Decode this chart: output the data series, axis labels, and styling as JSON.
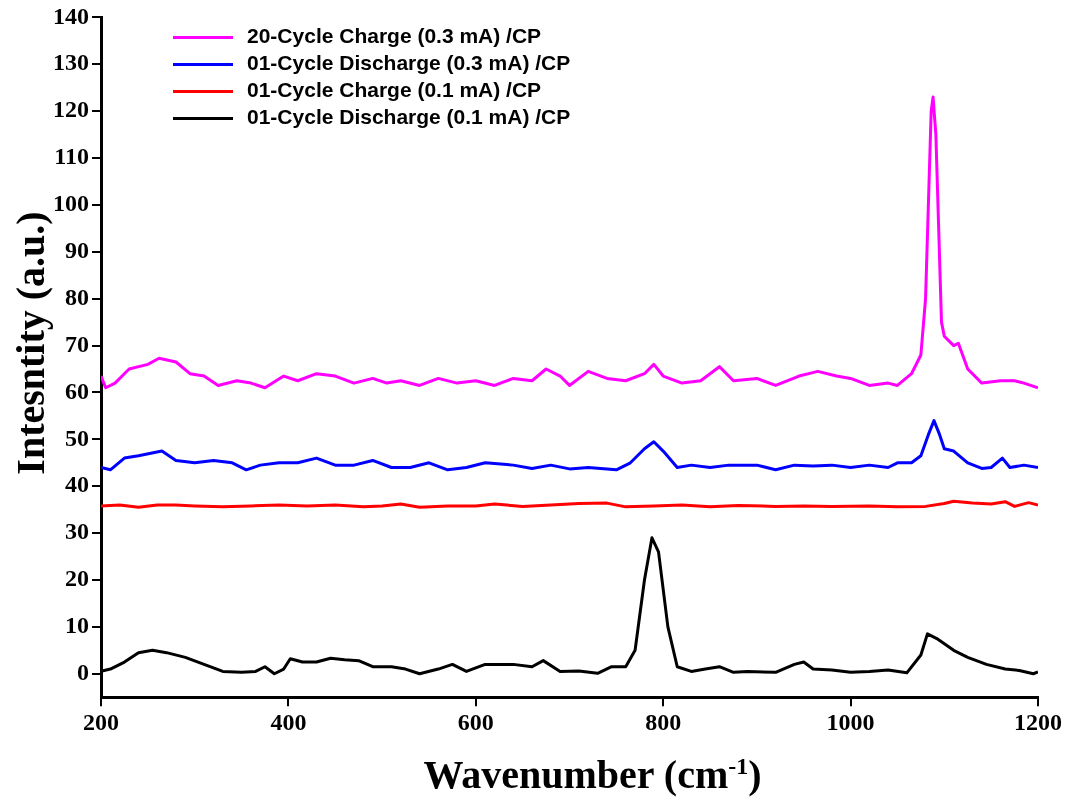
{
  "chart_data": {
    "type": "line",
    "xlabel": "Wavenumber (cm$^{-1}$)",
    "ylabel": "Intesntity (a.u.)",
    "xlim": [
      200,
      1200
    ],
    "xticks": [
      200,
      400,
      600,
      800,
      1000,
      1200
    ],
    "ylim": [
      -5,
      140
    ],
    "yticks": [
      0,
      10,
      20,
      30,
      40,
      50,
      60,
      70,
      80,
      90,
      100,
      110,
      120,
      130,
      140
    ],
    "legend": "top left",
    "series": [
      {
        "name": "20-Cycle Charge (0.3 mA) /CP",
        "color": "#ff00ff",
        "x": [
          200,
          205,
          215,
          230,
          250,
          262,
          280,
          295,
          310,
          325,
          345,
          360,
          375,
          395,
          410,
          430,
          450,
          470,
          490,
          505,
          520,
          540,
          560,
          580,
          600,
          620,
          640,
          660,
          675,
          690,
          700,
          720,
          740,
          760,
          780,
          790,
          800,
          820,
          840,
          860,
          875,
          900,
          920,
          945,
          965,
          985,
          1000,
          1020,
          1040,
          1050,
          1065,
          1075,
          1080,
          1083,
          1086,
          1088,
          1091,
          1094,
          1097,
          1100,
          1110,
          1115,
          1125,
          1140,
          1160,
          1175,
          1185,
          1200
        ],
        "values": [
          63.5,
          61,
          62,
          65,
          66,
          67.3,
          66.5,
          64,
          63.5,
          61.5,
          62.5,
          62,
          61,
          63.5,
          62.5,
          64,
          63.5,
          62,
          63,
          62,
          62.5,
          61.5,
          63,
          62,
          62.5,
          61.5,
          63,
          62.5,
          65,
          63.5,
          61.5,
          64.5,
          63,
          62.5,
          64,
          66,
          63.5,
          62,
          62.5,
          65.5,
          62.5,
          63,
          61.5,
          63.5,
          64.5,
          63.5,
          63,
          61.5,
          62,
          61.5,
          64,
          68,
          80,
          100,
          120,
          123,
          115,
          95,
          75,
          72,
          70,
          70.5,
          65,
          62,
          62.5,
          62.5,
          62,
          61
        ]
      },
      {
        "name": "01-Cycle Discharge (0.3 mA) /CP",
        "color": "#0000ff",
        "x": [
          200,
          210,
          225,
          240,
          265,
          280,
          300,
          320,
          340,
          355,
          370,
          390,
          410,
          430,
          450,
          470,
          490,
          510,
          530,
          550,
          570,
          590,
          610,
          640,
          660,
          680,
          700,
          720,
          750,
          765,
          780,
          790,
          800,
          815,
          830,
          850,
          870,
          900,
          920,
          940,
          960,
          980,
          1000,
          1020,
          1040,
          1050,
          1065,
          1075,
          1083,
          1089,
          1095,
          1100,
          1110,
          1125,
          1140,
          1150,
          1162,
          1170,
          1185,
          1200
        ],
        "values": [
          44,
          43.5,
          46,
          46.5,
          47.5,
          45.5,
          45,
          45.5,
          45,
          43.5,
          44.5,
          45,
          45,
          46,
          44.5,
          44.5,
          45.5,
          44,
          44,
          45,
          43.5,
          44,
          45,
          44.5,
          43.8,
          44.5,
          43.7,
          44,
          43.5,
          45,
          48,
          49.5,
          47.5,
          44,
          44.5,
          44,
          44.5,
          44.5,
          43.5,
          44.5,
          44.3,
          44.5,
          44,
          44.5,
          44,
          45,
          45,
          46.5,
          51,
          54,
          51,
          48,
          47.5,
          45,
          43.8,
          44,
          46,
          44,
          44.5,
          44
        ]
      },
      {
        "name": "01-Cycle Charge (0.1 mA) /CP",
        "color": "#ff0000",
        "x": [
          200,
          220,
          240,
          260,
          280,
          300,
          330,
          360,
          390,
          420,
          450,
          480,
          500,
          520,
          540,
          570,
          600,
          620,
          650,
          680,
          710,
          740,
          760,
          790,
          820,
          850,
          880,
          920,
          950,
          980,
          1020,
          1050,
          1080,
          1100,
          1110,
          1130,
          1150,
          1165,
          1175,
          1190,
          1200
        ],
        "values": [
          35.8,
          36,
          35.5,
          36,
          36,
          35.8,
          35.6,
          35.8,
          36,
          35.8,
          36,
          35.6,
          35.8,
          36.2,
          35.5,
          35.8,
          35.8,
          36.2,
          35.7,
          36,
          36.3,
          36.4,
          35.6,
          35.8,
          36,
          35.6,
          35.9,
          35.7,
          35.8,
          35.7,
          35.8,
          35.6,
          35.7,
          36.3,
          36.8,
          36.4,
          36.2,
          36.7,
          35.7,
          36.5,
          36
        ]
      },
      {
        "name": "01-Cycle Discharge (0.1 mA) /CP",
        "color": "#000000",
        "x": [
          200,
          210,
          225,
          240,
          255,
          270,
          290,
          310,
          330,
          350,
          365,
          375,
          385,
          395,
          402,
          415,
          430,
          445,
          460,
          475,
          490,
          510,
          525,
          540,
          560,
          575,
          590,
          610,
          625,
          640,
          660,
          672,
          690,
          710,
          730,
          745,
          760,
          770,
          780,
          788,
          795,
          805,
          815,
          830,
          845,
          860,
          875,
          890,
          920,
          940,
          950,
          960,
          980,
          1000,
          1020,
          1040,
          1060,
          1075,
          1082,
          1092,
          1110,
          1125,
          1145,
          1165,
          1180,
          1195,
          1200
        ],
        "values": [
          0.5,
          1,
          2.5,
          4.5,
          5,
          4.5,
          3.5,
          2,
          0.5,
          0.3,
          0.5,
          1.5,
          0,
          1,
          3.2,
          2.5,
          2.5,
          3.3,
          3,
          2.8,
          1.5,
          1.5,
          1,
          0,
          1,
          2,
          0.5,
          2,
          2,
          2,
          1.5,
          2.8,
          0.5,
          0.6,
          0.1,
          1.5,
          1.5,
          5,
          20,
          29,
          26,
          10,
          1.5,
          0.5,
          1,
          1.5,
          0.3,
          0.5,
          0.3,
          2,
          2.5,
          1,
          0.8,
          0.3,
          0.5,
          0.8,
          0.2,
          4,
          8.5,
          7.5,
          5,
          3.5,
          2,
          1,
          0.7,
          0,
          0.4
        ]
      }
    ]
  }
}
